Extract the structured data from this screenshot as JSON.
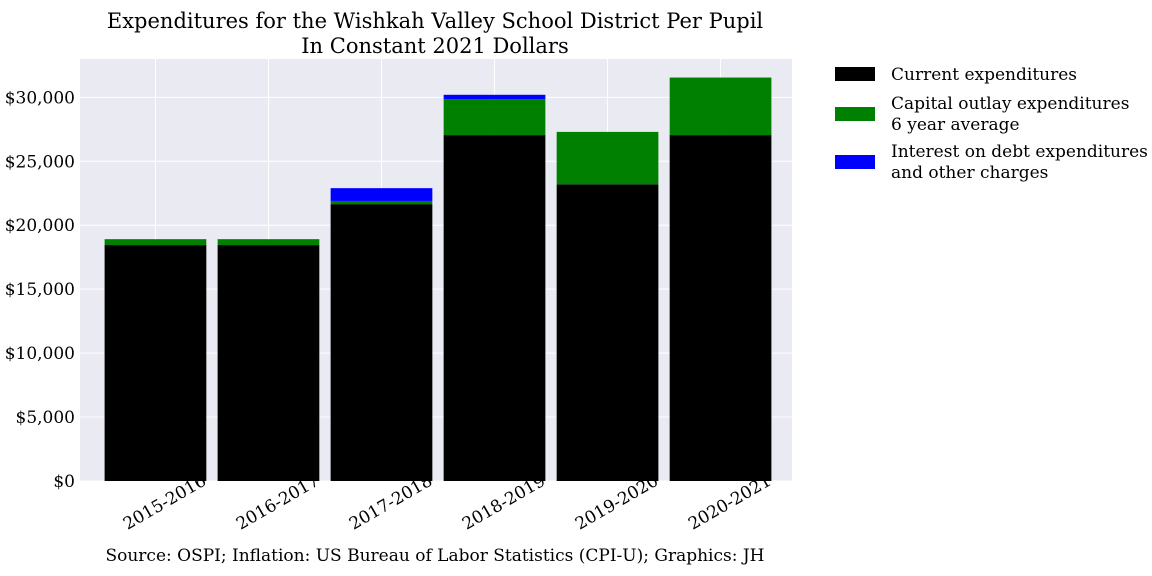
{
  "chart_data": {
    "type": "bar",
    "stacked": true,
    "title": "Expenditures for the Wishkah Valley School District Per Pupil",
    "subtitle": "In Constant 2021 Dollars",
    "xlabel": "",
    "ylabel": "",
    "categories": [
      "2015-2016",
      "2016-2017",
      "2017-2018",
      "2018-2019",
      "2019-2020",
      "2020-2021"
    ],
    "series": [
      {
        "name": "Current expenditures",
        "color": "#000000",
        "values": [
          18450,
          18450,
          21650,
          27050,
          23200,
          27050
        ]
      },
      {
        "name": "Capital outlay expenditures\n6 year average",
        "color": "#008000",
        "values": [
          400,
          400,
          250,
          2800,
          4100,
          4500
        ]
      },
      {
        "name": "Interest on debt expenditures\nand other charges",
        "color": "#0000ff",
        "values": [
          50,
          50,
          1000,
          350,
          0,
          0
        ]
      }
    ],
    "ylim": [
      0,
      33000
    ],
    "yticks": [
      0,
      5000,
      10000,
      15000,
      20000,
      25000,
      30000
    ],
    "ytick_labels": [
      "$0",
      "$5,000",
      "$10,000",
      "$15,000",
      "$20,000",
      "$25,000",
      "$30,000"
    ],
    "grid": true,
    "background": "#eaeaf2",
    "legend_position": "outside-right",
    "source": "Source: OSPI; Inflation: US Bureau of Labor Statistics (CPI-U); Graphics: JH"
  }
}
